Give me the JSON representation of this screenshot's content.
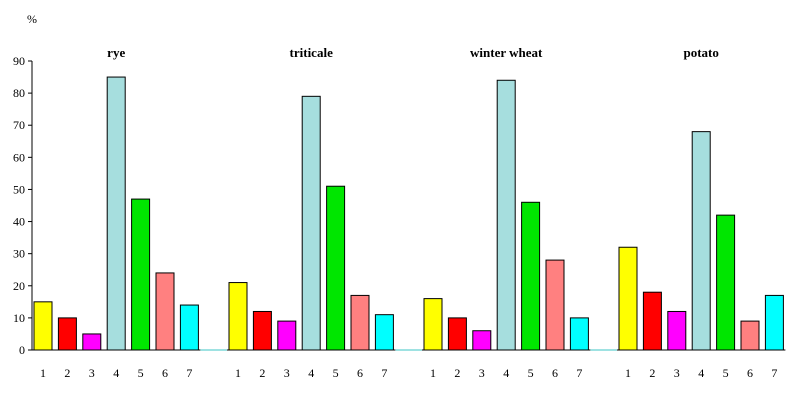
{
  "chart_data": {
    "type": "bar",
    "ylabel": "%",
    "ylim": [
      0,
      90
    ],
    "yticks": [
      0,
      10,
      20,
      30,
      40,
      50,
      60,
      70,
      80,
      90
    ],
    "grid": false,
    "legend": "none",
    "categories": [
      "1",
      "2",
      "3",
      "4",
      "5",
      "6",
      "7"
    ],
    "colors": [
      "#ffff00",
      "#ff0000",
      "#ff00ff",
      "#a6dede",
      "#00e600",
      "#ff8080",
      "#00ffff"
    ],
    "groups": [
      {
        "label": "rye",
        "values": [
          15,
          10,
          5,
          85,
          47,
          24,
          14
        ]
      },
      {
        "label": "triticale",
        "values": [
          21,
          12,
          9,
          79,
          51,
          17,
          11
        ]
      },
      {
        "label": "winter wheat",
        "values": [
          16,
          10,
          6,
          84,
          46,
          28,
          10
        ]
      },
      {
        "label": "potato",
        "values": [
          32,
          18,
          12,
          68,
          42,
          9,
          17
        ]
      }
    ]
  }
}
